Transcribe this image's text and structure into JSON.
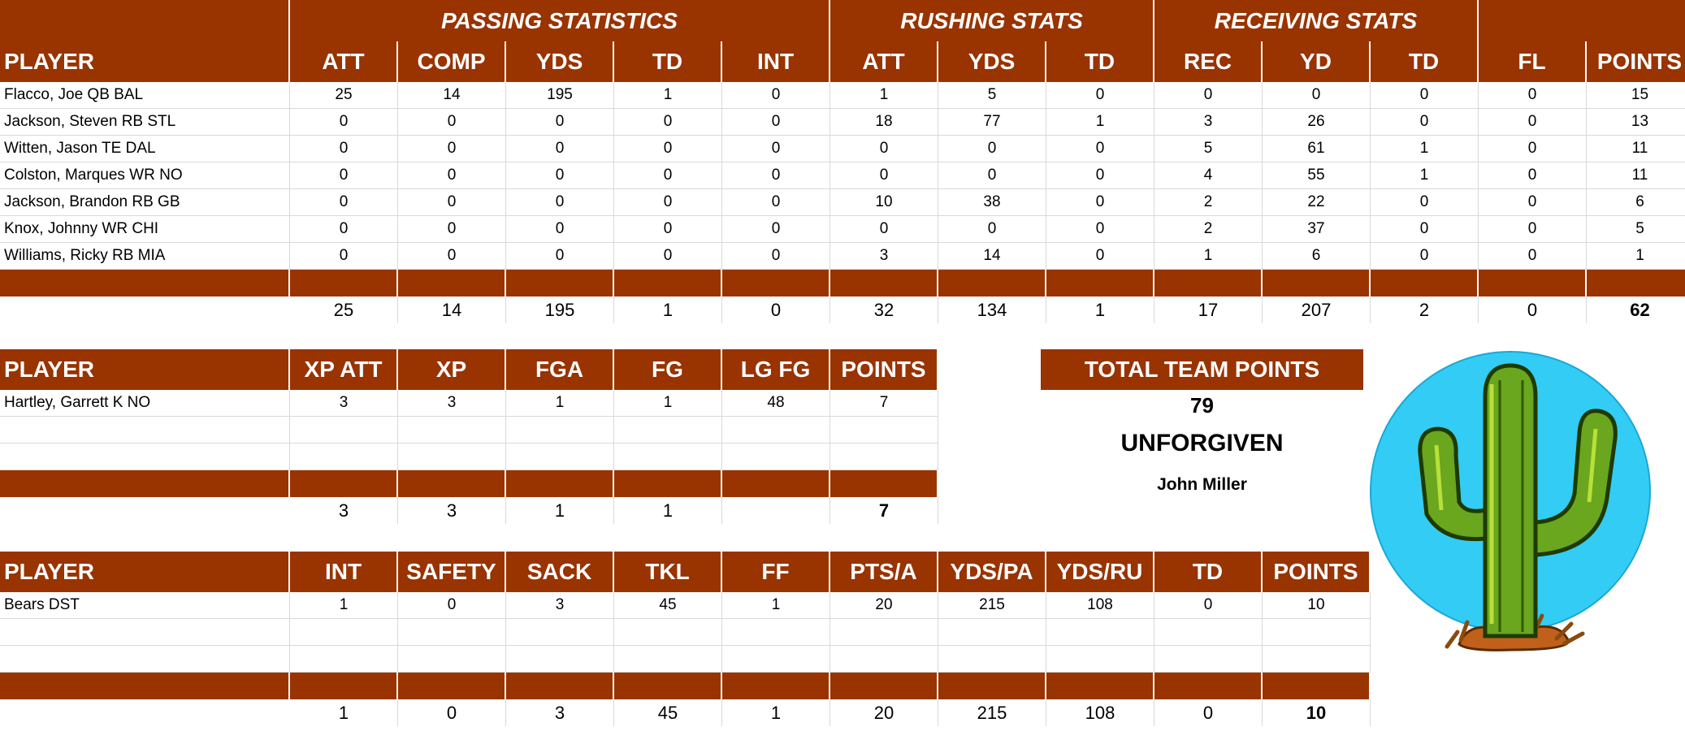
{
  "offense": {
    "groups": [
      {
        "label": "PASSING STATISTICS",
        "span": 5
      },
      {
        "label": "RUSHING STATS",
        "span": 3
      },
      {
        "label": "RECEIVING STATS",
        "span": 3
      },
      {
        "label": "",
        "span": 2
      }
    ],
    "player_header": "PLAYER",
    "columns": [
      "ATT",
      "COMP",
      "YDS",
      "TD",
      "INT",
      "ATT",
      "YDS",
      "TD",
      "REC",
      "YD",
      "TD",
      "FL",
      "POINTS"
    ],
    "rows": [
      {
        "player": "Flacco, Joe QB BAL",
        "values": [
          "25",
          "14",
          "195",
          "1",
          "0",
          "1",
          "5",
          "0",
          "0",
          "0",
          "0",
          "0",
          "15"
        ]
      },
      {
        "player": "Jackson, Steven RB STL",
        "values": [
          "0",
          "0",
          "0",
          "0",
          "0",
          "18",
          "77",
          "1",
          "3",
          "26",
          "0",
          "0",
          "13"
        ]
      },
      {
        "player": "Witten, Jason TE DAL",
        "values": [
          "0",
          "0",
          "0",
          "0",
          "0",
          "0",
          "0",
          "0",
          "5",
          "61",
          "1",
          "0",
          "11"
        ]
      },
      {
        "player": "Colston, Marques WR NO",
        "values": [
          "0",
          "0",
          "0",
          "0",
          "0",
          "0",
          "0",
          "0",
          "4",
          "55",
          "1",
          "0",
          "11"
        ]
      },
      {
        "player": "Jackson, Brandon RB GB",
        "values": [
          "0",
          "0",
          "0",
          "0",
          "0",
          "10",
          "38",
          "0",
          "2",
          "22",
          "0",
          "0",
          "6"
        ]
      },
      {
        "player": "Knox, Johnny WR CHI",
        "values": [
          "0",
          "0",
          "0",
          "0",
          "0",
          "0",
          "0",
          "0",
          "2",
          "37",
          "0",
          "0",
          "5"
        ]
      },
      {
        "player": "Williams, Ricky RB MIA",
        "values": [
          "0",
          "0",
          "0",
          "0",
          "0",
          "3",
          "14",
          "0",
          "1",
          "6",
          "0",
          "0",
          "1"
        ]
      }
    ],
    "totals": [
      "25",
      "14",
      "195",
      "1",
      "0",
      "32",
      "134",
      "1",
      "17",
      "207",
      "2",
      "0",
      "62"
    ]
  },
  "kicker": {
    "player_header": "PLAYER",
    "columns": [
      "XP ATT",
      "XP",
      "FGA",
      "FG",
      "LG FG",
      "POINTS"
    ],
    "rows": [
      {
        "player": "Hartley, Garrett K NO",
        "values": [
          "3",
          "3",
          "1",
          "1",
          "48",
          "7"
        ]
      },
      {
        "player": "",
        "values": [
          "",
          "",
          "",
          "",
          "",
          ""
        ]
      },
      {
        "player": "",
        "values": [
          "",
          "",
          "",
          "",
          "",
          ""
        ]
      }
    ],
    "totals": [
      "3",
      "3",
      "1",
      "1",
      "",
      "7"
    ]
  },
  "defense": {
    "player_header": "PLAYER",
    "columns": [
      "INT",
      "SAFETY",
      "SACK",
      "TKL",
      "FF",
      "PTS/A",
      "YDS/PA",
      "YDS/RU",
      "TD",
      "POINTS"
    ],
    "rows": [
      {
        "player": "Bears DST",
        "values": [
          "1",
          "0",
          "3",
          "45",
          "1",
          "20",
          "215",
          "108",
          "0",
          "10"
        ]
      },
      {
        "player": "",
        "values": [
          "",
          "",
          "",
          "",
          "",
          "",
          "",
          "",
          "",
          ""
        ]
      },
      {
        "player": "",
        "values": [
          "",
          "",
          "",
          "",
          "",
          "",
          "",
          "",
          "",
          ""
        ]
      }
    ],
    "totals": [
      "1",
      "0",
      "3",
      "45",
      "1",
      "20",
      "215",
      "108",
      "0",
      "10"
    ]
  },
  "team": {
    "total_label": "TOTAL TEAM POINTS",
    "total_points": "79",
    "team_name": "UNFORGIVEN",
    "owner": "John Miller",
    "logo_icon": "cactus-icon"
  },
  "colors": {
    "header_bg": "#993300",
    "header_text": "#ffffff",
    "logo_circle": "#33ccf5",
    "cactus": "#66aa22"
  }
}
